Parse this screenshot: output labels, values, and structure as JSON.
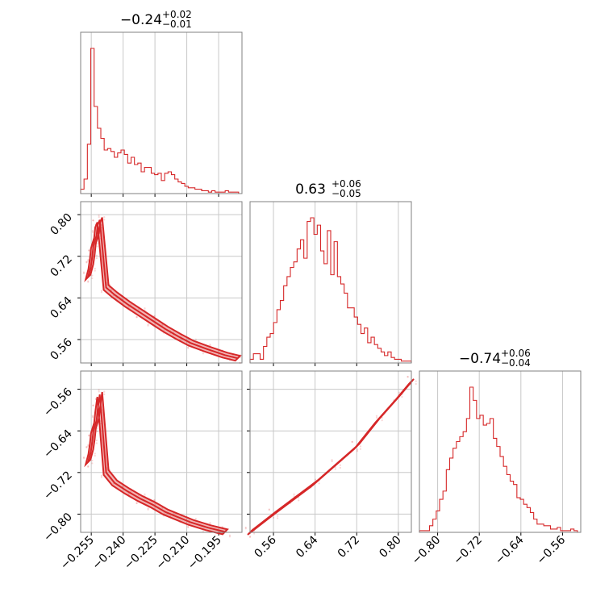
{
  "chart_data": {
    "type": "corner",
    "color": "#d62728",
    "parameters": [
      {
        "title": {
          "value": "−0.24",
          "sup": "+0.02",
          "sub": "−0.01"
        },
        "range": [
          -0.26,
          -0.184
        ],
        "ticks": [
          -0.255,
          -0.24,
          -0.225,
          -0.21,
          -0.195
        ],
        "tick_labels": [
          "−0.255",
          "−0.240",
          "−0.225",
          "−0.210",
          "−0.195"
        ]
      },
      {
        "title": {
          "value": "0.63",
          "sup": "+0.06",
          "sub": "−0.05"
        },
        "range": [
          0.515,
          0.825
        ],
        "ticks": [
          0.56,
          0.64,
          0.72,
          0.8
        ],
        "tick_labels": [
          "0.56",
          "0.64",
          "0.72",
          "0.80"
        ]
      },
      {
        "title": {
          "value": "−0.74",
          "sup": "+0.06",
          "sub": "−0.04"
        },
        "range": [
          -0.835,
          -0.525
        ],
        "ticks": [
          -0.8,
          -0.72,
          -0.64,
          -0.56
        ],
        "tick_labels": [
          "−0.80",
          "−0.72",
          "−0.64",
          "−0.56"
        ]
      }
    ],
    "histograms": [
      {
        "parameter": 0,
        "heights": [
          3,
          10,
          34,
          100,
          60,
          45,
          38,
          30,
          31,
          29,
          25,
          28,
          30,
          27,
          21,
          25,
          20,
          21,
          15,
          18,
          18,
          14,
          13,
          14,
          9,
          14,
          15,
          13,
          10,
          8,
          7,
          5,
          4,
          4,
          3,
          3,
          2,
          2,
          1,
          2,
          1,
          1,
          1,
          2,
          1,
          1,
          1,
          0
        ]
      },
      {
        "parameter": 1,
        "heights": [
          2,
          5,
          5,
          2,
          9,
          14,
          16,
          22,
          29,
          34,
          42,
          47,
          52,
          55,
          62,
          67,
          57,
          77,
          79,
          70,
          75,
          61,
          54,
          72,
          48,
          66,
          47,
          43,
          38,
          30,
          30,
          25,
          21,
          16,
          19,
          11,
          14,
          10,
          8,
          6,
          4,
          6,
          3,
          2,
          2,
          1,
          1,
          1
        ]
      },
      {
        "parameter": 2,
        "heights": [
          1,
          1,
          1,
          4,
          8,
          13,
          20,
          25,
          38,
          45,
          51,
          55,
          58,
          61,
          69,
          88,
          80,
          69,
          71,
          65,
          66,
          69,
          57,
          52,
          46,
          40,
          35,
          31,
          29,
          21,
          20,
          17,
          15,
          12,
          8,
          5,
          5,
          4,
          4,
          2,
          2,
          3,
          1,
          1,
          1,
          2,
          1,
          0
        ]
      }
    ],
    "pairs": [
      {
        "x": 0,
        "y": 1,
        "ridge": [
          [
            -0.2565,
            0.68
          ],
          [
            -0.2552,
            0.7
          ],
          [
            -0.2545,
            0.72
          ],
          [
            -0.254,
            0.74
          ],
          [
            -0.2525,
            0.76
          ],
          [
            -0.252,
            0.78
          ],
          [
            -0.251,
            0.79
          ],
          [
            -0.248,
            0.66
          ],
          [
            -0.244,
            0.646
          ],
          [
            -0.238,
            0.628
          ],
          [
            -0.232,
            0.612
          ],
          [
            -0.226,
            0.596
          ],
          [
            -0.22,
            0.58
          ],
          [
            -0.214,
            0.566
          ],
          [
            -0.208,
            0.553
          ],
          [
            -0.2,
            0.541
          ],
          [
            -0.192,
            0.53
          ],
          [
            -0.186,
            0.524
          ]
        ]
      },
      {
        "x": 0,
        "y": 2,
        "ridge": [
          [
            -0.2565,
            -0.7
          ],
          [
            -0.2552,
            -0.68
          ],
          [
            -0.2545,
            -0.66
          ],
          [
            -0.254,
            -0.64
          ],
          [
            -0.2525,
            -0.62
          ],
          [
            -0.252,
            -0.6
          ],
          [
            -0.251,
            -0.57
          ],
          [
            -0.248,
            -0.72
          ],
          [
            -0.244,
            -0.74
          ],
          [
            -0.238,
            -0.756
          ],
          [
            -0.232,
            -0.77
          ],
          [
            -0.226,
            -0.782
          ],
          [
            -0.22,
            -0.796
          ],
          [
            -0.214,
            -0.806
          ],
          [
            -0.208,
            -0.816
          ],
          [
            -0.2,
            -0.826
          ],
          [
            -0.192,
            -0.834
          ]
        ]
      },
      {
        "x": 1,
        "y": 2,
        "ridge": [
          [
            0.515,
            -0.835
          ],
          [
            0.56,
            -0.8
          ],
          [
            0.6,
            -0.77
          ],
          [
            0.64,
            -0.74
          ],
          [
            0.68,
            -0.705
          ],
          [
            0.72,
            -0.67
          ],
          [
            0.76,
            -0.62
          ],
          [
            0.8,
            -0.575
          ],
          [
            0.825,
            -0.545
          ]
        ]
      }
    ],
    "grid": true
  }
}
